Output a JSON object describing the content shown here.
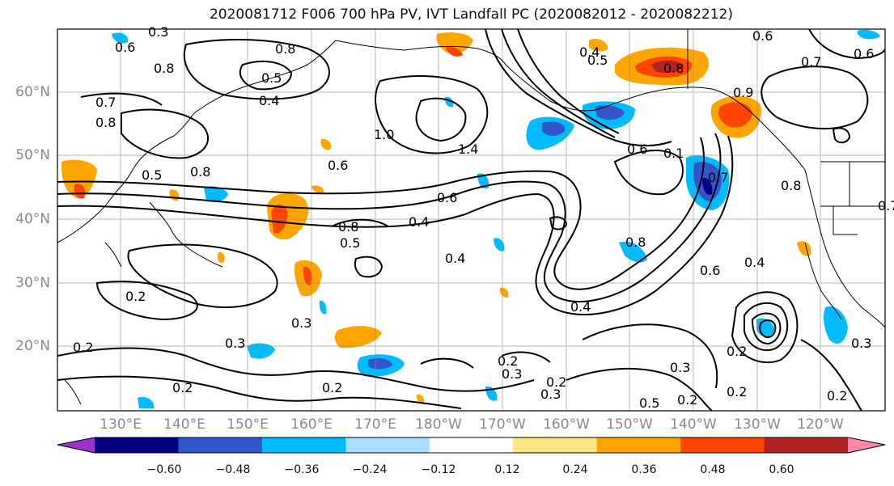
{
  "title": "2020081712 F006 700 hPa PV, IVT Landfall PC (2020082012 - 2020082212)",
  "lat_labels": [
    "60°N",
    "50°N",
    "40°N",
    "30°N",
    "20°N"
  ],
  "lon_labels": [
    "130°E",
    "140°E",
    "150°E",
    "160°E",
    "170°E",
    "180°W",
    "170°W",
    "160°W",
    "150°W",
    "140°W",
    "130°W",
    "120°W"
  ],
  "contour_labels": [
    "0.3",
    "0.6",
    "0.8",
    "0.8",
    "0.6",
    "0.7",
    "0.5",
    "0.4",
    "0.7",
    "0.8",
    "1.0",
    "1.4",
    "0.5",
    "0.4",
    "0.8",
    "0.6",
    "0.7",
    "0.8",
    "0.6",
    "0.5",
    "0.6",
    "0.6",
    "0.4",
    "0.8",
    "0.5",
    "0.4",
    "0.8",
    "0.6",
    "0.4",
    "0.8",
    "0.7",
    "0.4",
    "0.3",
    "0.2",
    "0.3",
    "0.2",
    "0.3",
    "0.2",
    "0.2",
    "0.2",
    "0.3",
    "0.2",
    "0.5",
    "0.2",
    "0.3",
    "0.2",
    "0.2",
    "0.3",
    "0.2",
    "0.1",
    "0.9"
  ],
  "colorbar": {
    "colors": [
      "#9933cc",
      "#000080",
      "#3355cc",
      "#00bbff",
      "#aaddff",
      "#ffffff",
      "#ffe680",
      "#ffa500",
      "#ff4500",
      "#b22222",
      "#ff88aa"
    ],
    "ticks": [
      "−0.60",
      "−0.48",
      "−0.36",
      "−0.24",
      "−0.12",
      "0.12",
      "0.24",
      "0.36",
      "0.48",
      "0.60"
    ]
  },
  "colors": {
    "contour": "#000000",
    "grid": "#888888",
    "label_gray": "#888888"
  }
}
